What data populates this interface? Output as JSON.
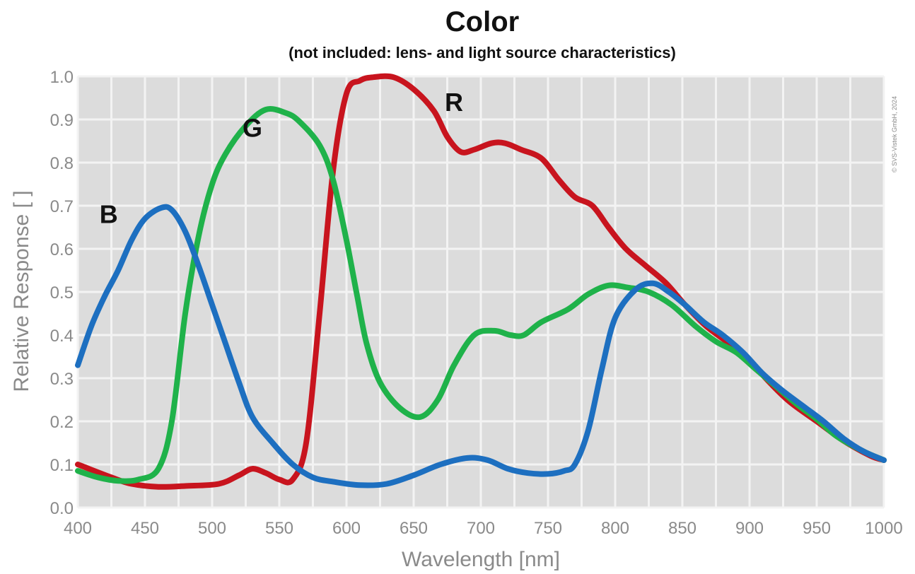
{
  "chart_data": {
    "type": "line",
    "title": "Color",
    "subtitle": "(not included: lens- and light source characteristics)",
    "xlabel": "Wavelength [nm]",
    "ylabel": "Relative Response [ ]",
    "xlim": [
      400,
      1000
    ],
    "ylim": [
      0,
      1.0
    ],
    "x_ticks": [
      "400",
      "450",
      "500",
      "550",
      "600",
      "650",
      "700",
      "750",
      "800",
      "850",
      "900",
      "950",
      "1000"
    ],
    "y_ticks": [
      "0.0",
      "0.1",
      "0.2",
      "0.3",
      "0.4",
      "0.5",
      "0.6",
      "0.7",
      "0.8",
      "0.9",
      "1.0"
    ],
    "grid": true,
    "copyright": "© SVS-Vistek GmbH, 2024",
    "colors": {
      "plot_background": "#dcdcdc",
      "grid": "#f3f3f3"
    },
    "series": [
      {
        "name": "R",
        "color": "#c8141e",
        "label_at": [
          680,
          0.92
        ],
        "points": [
          [
            400,
            0.1
          ],
          [
            425,
            0.07
          ],
          [
            440,
            0.055
          ],
          [
            460,
            0.048
          ],
          [
            480,
            0.05
          ],
          [
            505,
            0.055
          ],
          [
            520,
            0.075
          ],
          [
            530,
            0.09
          ],
          [
            540,
            0.08
          ],
          [
            550,
            0.065
          ],
          [
            560,
            0.065
          ],
          [
            570,
            0.15
          ],
          [
            580,
            0.45
          ],
          [
            590,
            0.78
          ],
          [
            600,
            0.96
          ],
          [
            610,
            0.99
          ],
          [
            620,
            0.998
          ],
          [
            635,
            0.998
          ],
          [
            650,
            0.97
          ],
          [
            665,
            0.92
          ],
          [
            675,
            0.86
          ],
          [
            685,
            0.825
          ],
          [
            695,
            0.83
          ],
          [
            708,
            0.845
          ],
          [
            718,
            0.845
          ],
          [
            730,
            0.83
          ],
          [
            745,
            0.81
          ],
          [
            758,
            0.76
          ],
          [
            770,
            0.72
          ],
          [
            783,
            0.7
          ],
          [
            795,
            0.65
          ],
          [
            808,
            0.6
          ],
          [
            823,
            0.56
          ],
          [
            838,
            0.52
          ],
          [
            852,
            0.47
          ],
          [
            868,
            0.42
          ],
          [
            885,
            0.38
          ],
          [
            900,
            0.34
          ],
          [
            915,
            0.29
          ],
          [
            930,
            0.245
          ],
          [
            950,
            0.2
          ],
          [
            970,
            0.155
          ],
          [
            990,
            0.12
          ],
          [
            1000,
            0.11
          ]
        ]
      },
      {
        "name": "G",
        "color": "#1fb24a",
        "label_at": [
          530,
          0.86
        ],
        "points": [
          [
            400,
            0.085
          ],
          [
            415,
            0.07
          ],
          [
            430,
            0.062
          ],
          [
            445,
            0.065
          ],
          [
            460,
            0.09
          ],
          [
            470,
            0.2
          ],
          [
            480,
            0.45
          ],
          [
            490,
            0.63
          ],
          [
            500,
            0.75
          ],
          [
            510,
            0.82
          ],
          [
            525,
            0.885
          ],
          [
            540,
            0.923
          ],
          [
            555,
            0.915
          ],
          [
            565,
            0.895
          ],
          [
            580,
            0.84
          ],
          [
            590,
            0.76
          ],
          [
            600,
            0.62
          ],
          [
            608,
            0.49
          ],
          [
            615,
            0.38
          ],
          [
            625,
            0.29
          ],
          [
            640,
            0.23
          ],
          [
            655,
            0.21
          ],
          [
            668,
            0.25
          ],
          [
            680,
            0.33
          ],
          [
            695,
            0.4
          ],
          [
            710,
            0.41
          ],
          [
            722,
            0.4
          ],
          [
            732,
            0.4
          ],
          [
            745,
            0.43
          ],
          [
            765,
            0.46
          ],
          [
            780,
            0.495
          ],
          [
            795,
            0.515
          ],
          [
            810,
            0.51
          ],
          [
            825,
            0.5
          ],
          [
            842,
            0.47
          ],
          [
            860,
            0.42
          ],
          [
            875,
            0.385
          ],
          [
            890,
            0.36
          ],
          [
            905,
            0.32
          ],
          [
            920,
            0.28
          ],
          [
            935,
            0.24
          ],
          [
            950,
            0.205
          ],
          [
            965,
            0.165
          ],
          [
            985,
            0.13
          ],
          [
            1000,
            0.11
          ]
        ]
      },
      {
        "name": "B",
        "color": "#1d6fc0",
        "label_at": [
          423,
          0.66
        ],
        "points": [
          [
            400,
            0.33
          ],
          [
            410,
            0.42
          ],
          [
            420,
            0.49
          ],
          [
            430,
            0.55
          ],
          [
            440,
            0.62
          ],
          [
            450,
            0.67
          ],
          [
            462,
            0.695
          ],
          [
            470,
            0.69
          ],
          [
            480,
            0.64
          ],
          [
            490,
            0.56
          ],
          [
            500,
            0.47
          ],
          [
            510,
            0.38
          ],
          [
            520,
            0.29
          ],
          [
            530,
            0.21
          ],
          [
            545,
            0.15
          ],
          [
            560,
            0.1
          ],
          [
            575,
            0.07
          ],
          [
            590,
            0.06
          ],
          [
            610,
            0.052
          ],
          [
            630,
            0.055
          ],
          [
            650,
            0.075
          ],
          [
            670,
            0.1
          ],
          [
            690,
            0.115
          ],
          [
            705,
            0.11
          ],
          [
            720,
            0.09
          ],
          [
            735,
            0.08
          ],
          [
            750,
            0.078
          ],
          [
            762,
            0.085
          ],
          [
            770,
            0.1
          ],
          [
            780,
            0.18
          ],
          [
            790,
            0.32
          ],
          [
            800,
            0.44
          ],
          [
            815,
            0.505
          ],
          [
            828,
            0.52
          ],
          [
            840,
            0.5
          ],
          [
            852,
            0.47
          ],
          [
            866,
            0.43
          ],
          [
            880,
            0.4
          ],
          [
            895,
            0.36
          ],
          [
            910,
            0.31
          ],
          [
            925,
            0.27
          ],
          [
            940,
            0.235
          ],
          [
            955,
            0.2
          ],
          [
            970,
            0.16
          ],
          [
            985,
            0.13
          ],
          [
            1000,
            0.11
          ]
        ]
      }
    ]
  }
}
